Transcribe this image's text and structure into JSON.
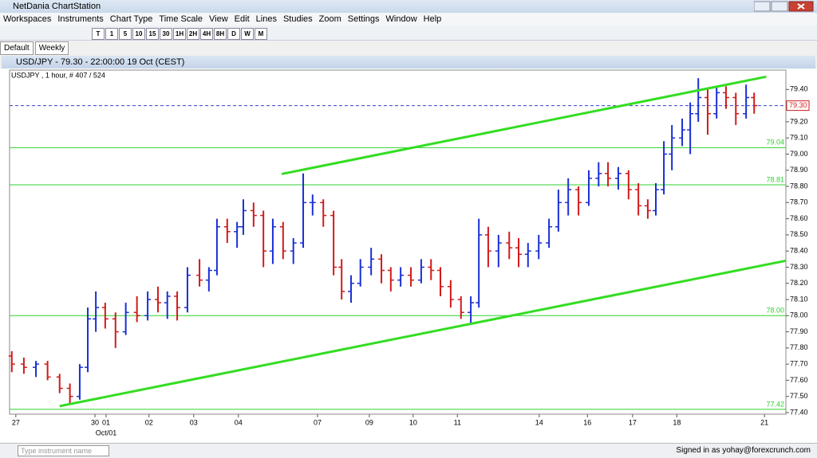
{
  "window": {
    "title": "NetDania ChartStation"
  },
  "menu": [
    "Workspaces",
    "Instruments",
    "Chart Type",
    "Time Scale",
    "View",
    "Edit",
    "Lines",
    "Studies",
    "Zoom",
    "Settings",
    "Window",
    "Help"
  ],
  "toolbar": {
    "buttons": [
      "T",
      "1",
      "5",
      "10",
      "15",
      "30",
      "1H",
      "2H",
      "4H",
      "8H",
      "D",
      "W",
      "M"
    ]
  },
  "tabs": [
    "Default",
    "Weekly"
  ],
  "chart_window": {
    "title": "USD/JPY - 79.30 - 22:00:00  19 Oct (CEST)"
  },
  "status": {
    "search_placeholder": "Type instrument name",
    "signed_in": "Signed in as yohay@forexcrunch.com"
  },
  "chart_data": {
    "type": "ohlc",
    "legend": "USDJPY , 1 hour, # 407 / 524",
    "x": [
      -0.09,
      0.18,
      0.45,
      0.71,
      0.98,
      1.21,
      1.43,
      1.61,
      1.79,
      2.0,
      2.23,
      2.46,
      2.71,
      2.95,
      3.18,
      3.39,
      3.61,
      3.84,
      4.11,
      4.32,
      4.5,
      4.73,
      4.95,
      5.09,
      5.32,
      5.54,
      5.75,
      5.98,
      6.21,
      6.43,
      6.64,
      6.88,
      7.11,
      7.29,
      7.5,
      7.71,
      7.95,
      8.18,
      8.39,
      8.61,
      8.84,
      9.07,
      9.29,
      9.5,
      9.73,
      9.96,
      10.18,
      10.36,
      10.57,
      10.8,
      11.04,
      11.25,
      11.46,
      11.7,
      11.93,
      12.14,
      12.36,
      12.59,
      12.82,
      13.04,
      13.25,
      13.48,
      13.71,
      13.93,
      14.14,
      14.32,
      14.5,
      14.68,
      14.91,
      15.09,
      15.27,
      15.48,
      15.68,
      15.89,
      16.11,
      16.34,
      16.52
    ],
    "open": [
      77.75,
      77.7,
      77.68,
      77.7,
      77.62,
      77.55,
      77.5,
      77.68,
      77.98,
      78.05,
      77.98,
      77.9,
      78.02,
      78.0,
      78.1,
      78.08,
      78.12,
      78.05,
      78.25,
      78.22,
      78.28,
      78.55,
      78.52,
      78.55,
      78.65,
      78.62,
      78.4,
      78.55,
      78.4,
      78.45,
      78.7,
      78.7,
      78.62,
      78.3,
      78.15,
      78.2,
      78.3,
      78.35,
      78.28,
      78.22,
      78.25,
      78.22,
      78.3,
      78.28,
      78.18,
      78.1,
      78.02,
      78.08,
      78.5,
      78.4,
      78.45,
      78.42,
      78.38,
      78.4,
      78.45,
      78.55,
      78.7,
      78.78,
      78.7,
      78.85,
      78.88,
      78.85,
      78.88,
      78.78,
      78.68,
      78.65,
      78.78,
      79.0,
      79.1,
      79.15,
      79.25,
      79.35,
      79.25,
      79.38,
      79.35,
      79.25,
      79.35
    ],
    "high": [
      77.78,
      77.74,
      77.72,
      77.72,
      77.64,
      77.58,
      77.7,
      78.05,
      78.15,
      78.08,
      78.02,
      78.08,
      78.12,
      78.15,
      78.18,
      78.15,
      78.15,
      78.3,
      78.35,
      78.3,
      78.6,
      78.6,
      78.58,
      78.72,
      78.7,
      78.65,
      78.6,
      78.58,
      78.48,
      78.88,
      78.75,
      78.72,
      78.65,
      78.35,
      78.25,
      78.35,
      78.42,
      78.38,
      78.3,
      78.3,
      78.3,
      78.35,
      78.35,
      78.3,
      78.22,
      78.12,
      78.12,
      78.6,
      78.55,
      78.5,
      78.52,
      78.48,
      78.45,
      78.5,
      78.6,
      78.78,
      78.85,
      78.8,
      78.9,
      78.95,
      78.95,
      78.92,
      78.9,
      78.82,
      78.72,
      78.82,
      79.08,
      79.18,
      79.22,
      79.32,
      79.47,
      79.4,
      79.42,
      79.42,
      79.38,
      79.43,
      79.38
    ],
    "low": [
      77.65,
      77.64,
      77.62,
      77.6,
      77.52,
      77.45,
      77.48,
      77.65,
      77.9,
      77.92,
      77.8,
      77.88,
      77.96,
      77.97,
      78.02,
      77.98,
      77.97,
      78.02,
      78.18,
      78.15,
      78.25,
      78.45,
      78.42,
      78.5,
      78.55,
      78.3,
      78.32,
      78.35,
      78.32,
      78.42,
      78.62,
      78.55,
      78.25,
      78.1,
      78.08,
      78.18,
      78.25,
      78.2,
      78.15,
      78.18,
      78.18,
      78.2,
      78.22,
      78.12,
      78.05,
      77.98,
      77.95,
      78.05,
      78.3,
      78.3,
      78.35,
      78.3,
      78.3,
      78.35,
      78.42,
      78.52,
      78.62,
      78.62,
      78.68,
      78.8,
      78.8,
      78.78,
      78.72,
      78.62,
      78.6,
      78.62,
      78.75,
      78.9,
      79.05,
      79.0,
      79.2,
      79.12,
      79.22,
      79.28,
      79.18,
      79.22,
      79.25
    ],
    "close": [
      77.7,
      77.68,
      77.7,
      77.62,
      77.55,
      77.5,
      77.68,
      77.98,
      78.05,
      77.98,
      77.9,
      78.02,
      78.0,
      78.1,
      78.08,
      78.12,
      78.05,
      78.25,
      78.22,
      78.28,
      78.55,
      78.52,
      78.55,
      78.65,
      78.62,
      78.4,
      78.55,
      78.4,
      78.45,
      78.7,
      78.7,
      78.62,
      78.3,
      78.15,
      78.2,
      78.3,
      78.35,
      78.28,
      78.22,
      78.25,
      78.22,
      78.3,
      78.28,
      78.18,
      78.1,
      78.02,
      78.08,
      78.5,
      78.4,
      78.45,
      78.42,
      78.38,
      78.4,
      78.45,
      78.55,
      78.7,
      78.78,
      78.7,
      78.85,
      78.88,
      78.85,
      78.88,
      78.78,
      78.68,
      78.65,
      78.78,
      79.0,
      79.1,
      79.15,
      79.25,
      79.35,
      79.25,
      79.38,
      79.35,
      79.25,
      79.35,
      79.3
    ],
    "up_color": "#1a2fd6",
    "down_color": "#d21a1a",
    "xlim": [
      -0.14,
      17.23
    ],
    "xticks": [
      {
        "value": 0,
        "label": "27"
      },
      {
        "value": 1.77,
        "label": "30"
      },
      {
        "value": 2.02,
        "label": "01"
      },
      {
        "value": 2.98,
        "label": "02"
      },
      {
        "value": 3.98,
        "label": "03"
      },
      {
        "value": 4.98,
        "label": "04"
      },
      {
        "value": 6.75,
        "label": "07"
      },
      {
        "value": 7.91,
        "label": "09"
      },
      {
        "value": 8.89,
        "label": "10"
      },
      {
        "value": 9.88,
        "label": "11"
      },
      {
        "value": 11.71,
        "label": "14"
      },
      {
        "value": 12.79,
        "label": "16"
      },
      {
        "value": 13.8,
        "label": "17"
      },
      {
        "value": 14.79,
        "label": "18"
      },
      {
        "value": 16.75,
        "label": "21"
      }
    ],
    "x_sublabels": [
      {
        "value": 2.02,
        "label": "Oct/01"
      }
    ],
    "ylim": [
      77.39,
      79.52
    ],
    "yticks": [
      {
        "value": 77.4,
        "label": "77.40"
      },
      {
        "value": 77.5,
        "label": "77.50"
      },
      {
        "value": 77.6,
        "label": "77.60"
      },
      {
        "value": 77.7,
        "label": "77.70"
      },
      {
        "value": 77.8,
        "label": "77.80"
      },
      {
        "value": 77.9,
        "label": "77.90"
      },
      {
        "value": 78.0,
        "label": "78.00"
      },
      {
        "value": 78.1,
        "label": "78.10"
      },
      {
        "value": 78.2,
        "label": "78.20"
      },
      {
        "value": 78.3,
        "label": "78.30"
      },
      {
        "value": 78.4,
        "label": "78.40"
      },
      {
        "value": 78.5,
        "label": "78.50"
      },
      {
        "value": 78.6,
        "label": "78.60"
      },
      {
        "value": 78.7,
        "label": "78.70"
      },
      {
        "value": 78.8,
        "label": "78.80"
      },
      {
        "value": 78.9,
        "label": "78.90"
      },
      {
        "value": 79.0,
        "label": "79.00"
      },
      {
        "value": 79.1,
        "label": "79.10"
      },
      {
        "value": 79.2,
        "label": "79.20"
      },
      {
        "value": 79.3,
        "label": "79.30"
      },
      {
        "value": 79.4,
        "label": "79.40"
      }
    ],
    "levels": [
      {
        "value": 79.04,
        "label": "79.04"
      },
      {
        "value": 78.81,
        "label": "78.81"
      },
      {
        "value": 78.0,
        "label": "78.00"
      },
      {
        "value": 77.42,
        "label": "77.42"
      }
    ],
    "level_color": "#2fd22f",
    "trendlines": [
      {
        "x": [
          5.95,
          16.79
        ],
        "y": [
          78.877,
          79.479
        ]
      },
      {
        "x": [
          0.98,
          17.23
        ],
        "y": [
          77.44,
          78.34
        ]
      }
    ],
    "trend_color": "#33dd22",
    "last_price": {
      "value": 79.3,
      "label": "79.30"
    }
  }
}
